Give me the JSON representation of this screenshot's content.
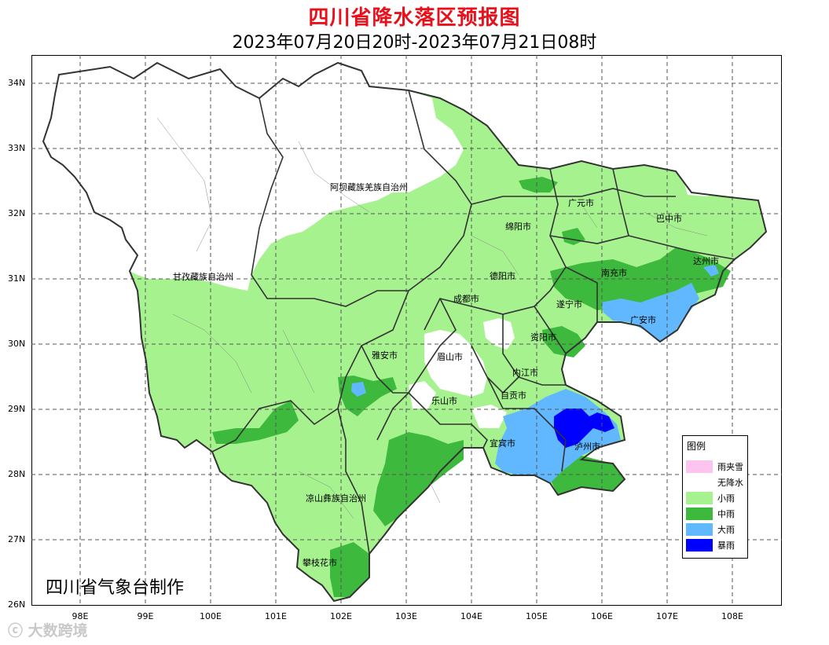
{
  "header": {
    "title": "四川省降水落区预报图",
    "subtitle": "2023年07月20日20时-2023年07月21日08时"
  },
  "axes": {
    "lat_labels": [
      "34N",
      "33N",
      "32N",
      "31N",
      "30N",
      "29N",
      "28N",
      "27N",
      "26N"
    ],
    "lon_labels": [
      "98E",
      "99E",
      "100E",
      "101E",
      "102E",
      "103E",
      "104E",
      "105E",
      "106E",
      "107E",
      "108E"
    ]
  },
  "regions": [
    "阿坝藏族羌族自治州",
    "广元市",
    "巴中市",
    "绵阳市",
    "达州市",
    "甘孜藏族自治州",
    "德阳市",
    "南充市",
    "成都市",
    "遂宁市",
    "广安市",
    "资阳市",
    "雅安市",
    "眉山市",
    "内江市",
    "自贡市",
    "乐山市",
    "宜宾市",
    "泸州市",
    "凉山彝族自治州",
    "攀枝花市"
  ],
  "legend": {
    "title": "图例",
    "items": [
      {
        "label": "雨夹雪",
        "color": "#fcc4ee"
      },
      {
        "label": "无降水",
        "color": "#ffffff"
      },
      {
        "label": "小雨",
        "color": "#a6f28f"
      },
      {
        "label": "中雨",
        "color": "#3dba3d"
      },
      {
        "label": "大雨",
        "color": "#61b8ff"
      },
      {
        "label": "暴雨",
        "color": "#0000fe"
      }
    ]
  },
  "credit": "四川省气象台制作",
  "watermark": "大数跨境"
}
